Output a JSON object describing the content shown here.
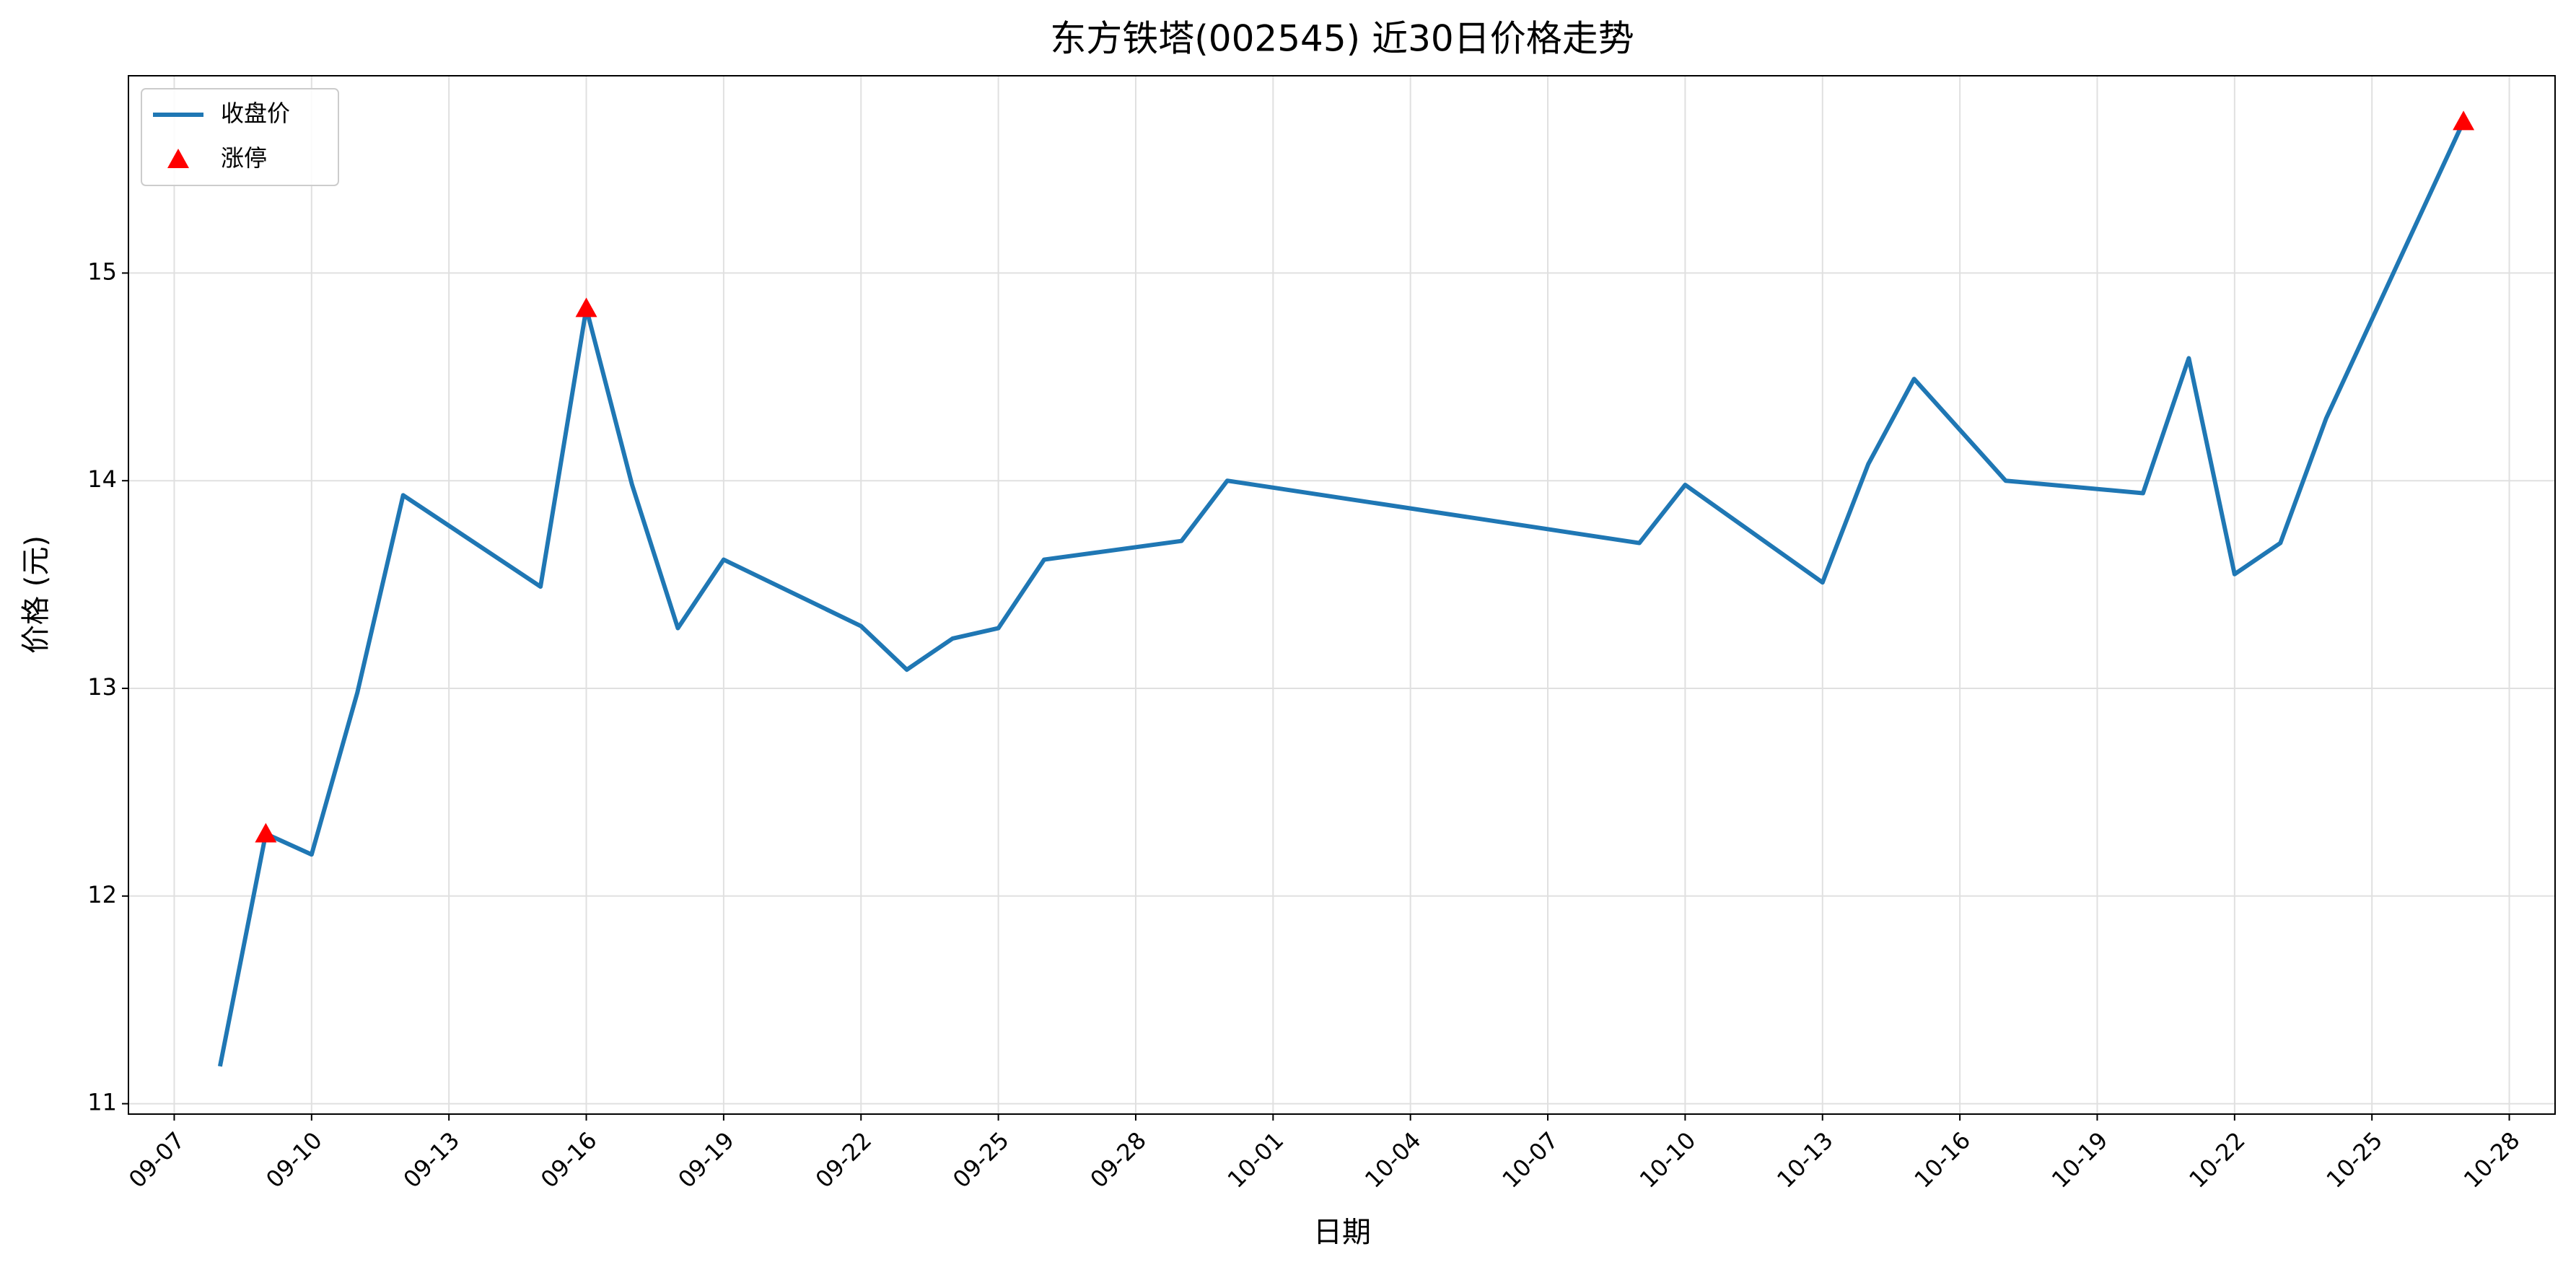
{
  "chart_data": {
    "type": "line",
    "title": "东方铁塔(002545) 近30日价格走势",
    "x_label": "日期",
    "y_label": "价格 (元)",
    "xlim": [
      "09-06",
      "10-29"
    ],
    "xticks": [
      "09-07",
      "09-10",
      "09-13",
      "09-16",
      "09-19",
      "09-22",
      "09-25",
      "09-28",
      "10-01",
      "10-04",
      "10-07",
      "10-10",
      "10-13",
      "10-16",
      "10-19",
      "10-22",
      "10-25",
      "10-28"
    ],
    "ylim": [
      10.95,
      15.95
    ],
    "yticks": [
      11,
      12,
      13,
      14,
      15
    ],
    "grid": true,
    "legend": "upper left",
    "series": [
      {
        "name": "收盘价",
        "type": "line",
        "color": "#1f77b4",
        "x": [
          "09-08",
          "09-09",
          "09-10",
          "09-11",
          "09-12",
          "09-15",
          "09-16",
          "09-17",
          "09-18",
          "09-19",
          "09-22",
          "09-23",
          "09-24",
          "09-25",
          "09-26",
          "09-29",
          "09-30",
          "10-09",
          "10-10",
          "10-13",
          "10-14",
          "10-15",
          "10-17",
          "10-20",
          "10-21",
          "10-22",
          "10-23",
          "10-24",
          "10-27"
        ],
        "values": [
          11.18,
          12.3,
          12.2,
          12.98,
          13.93,
          13.49,
          14.83,
          13.98,
          13.29,
          13.62,
          13.3,
          13.09,
          13.24,
          13.29,
          13.62,
          13.71,
          14.0,
          13.7,
          13.98,
          13.51,
          14.08,
          14.49,
          14.0,
          13.94,
          14.59,
          13.55,
          13.7,
          14.3,
          15.73
        ]
      },
      {
        "name": "涨停",
        "type": "scatter",
        "color": "#ff0000",
        "x": [
          "09-09",
          "09-16",
          "10-27"
        ],
        "values": [
          12.3,
          14.83,
          15.73
        ]
      }
    ]
  }
}
